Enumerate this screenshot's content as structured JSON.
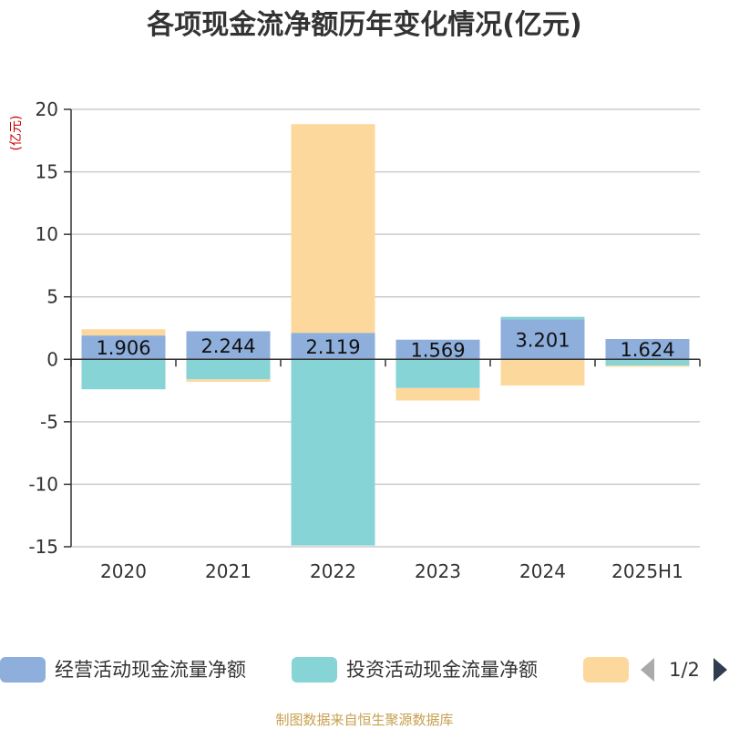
{
  "chart_data": {
    "type": "bar",
    "stacked": true,
    "title": "各项现金流净额历年变化情况(亿元)",
    "unit_label": "(亿元)",
    "categories": [
      "2020",
      "2021",
      "2022",
      "2023",
      "2024",
      "2025H1"
    ],
    "ylim": [
      -15,
      20
    ],
    "yticks": [
      -15,
      -10,
      -5,
      0,
      5,
      10,
      15,
      20
    ],
    "grid": true,
    "series": [
      {
        "name": "经营活动现金流量净额",
        "color": "#8eaedb",
        "values": [
          1.906,
          2.244,
          2.119,
          1.569,
          3.201,
          1.624
        ],
        "labels": [
          "1.906",
          "2.244",
          "2.119",
          "1.569",
          "3.201",
          "1.624"
        ]
      },
      {
        "name": "投资活动现金流量净额",
        "color": "#86d4d6",
        "values": [
          -2.4,
          -1.6,
          -14.9,
          -2.3,
          0.2,
          -0.5
        ]
      },
      {
        "name": "",
        "color": "#fdd89c",
        "values": [
          0.5,
          -0.2,
          16.7,
          -1.0,
          -2.1,
          -0.1
        ]
      }
    ],
    "legend": {
      "position": "bottom",
      "page": "1/2"
    },
    "source": "制图数据来自恒生聚源数据库"
  }
}
